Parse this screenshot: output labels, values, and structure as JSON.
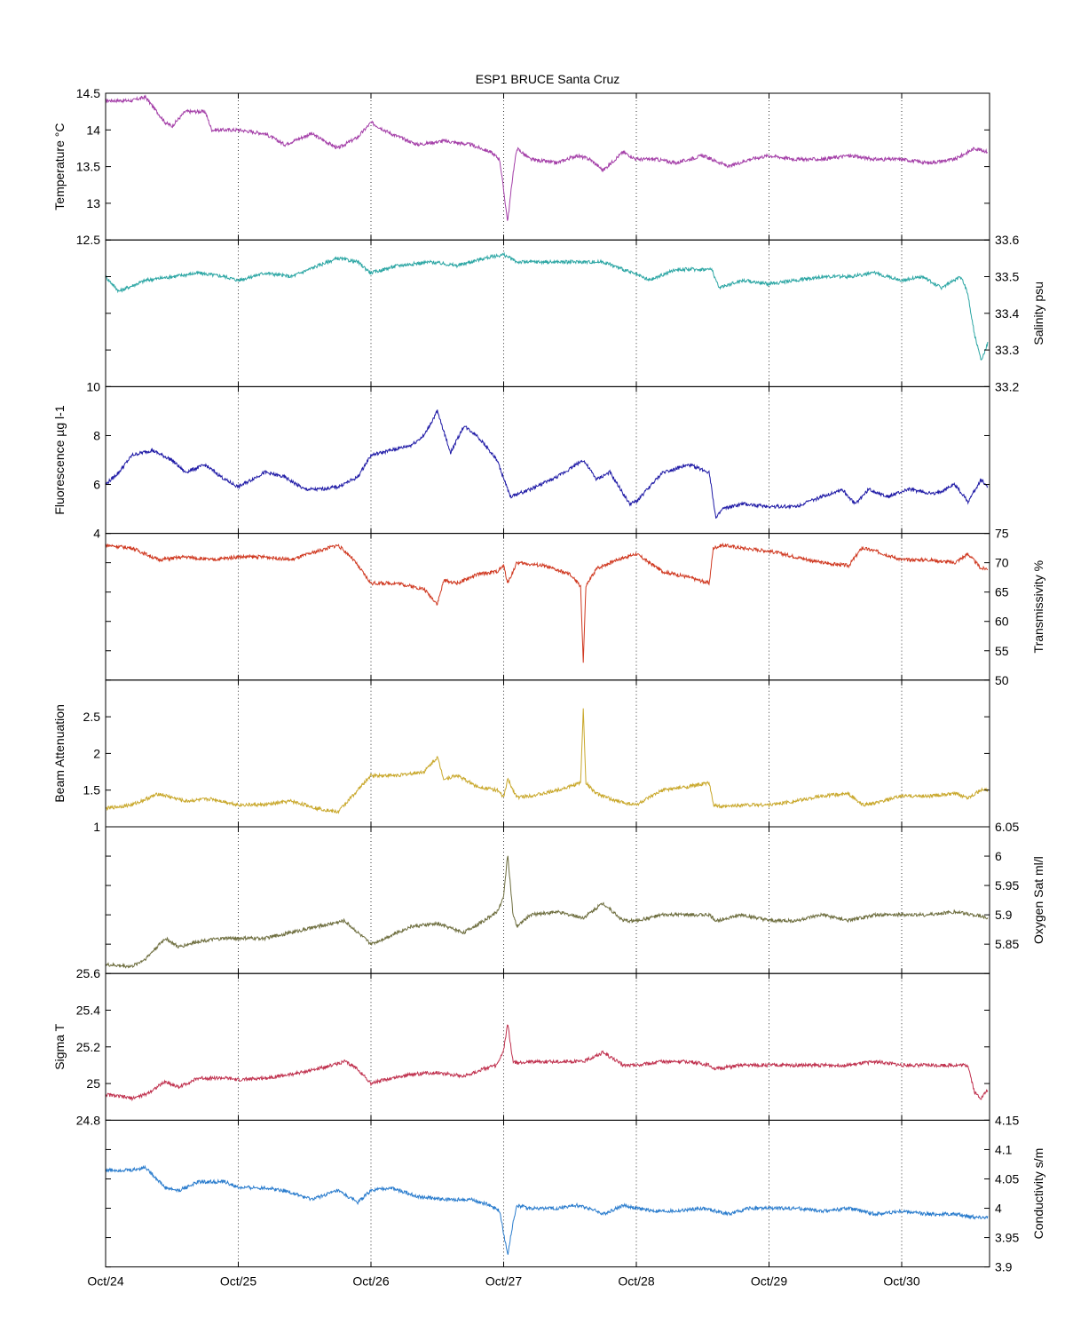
{
  "title": "ESP1 BRUCE Santa Cruz",
  "x_ticks": [
    "Oct/24",
    "Oct/25",
    "Oct/26",
    "Oct/27",
    "Oct/28",
    "Oct/29",
    "Oct/30"
  ],
  "chart_data": [
    {
      "type": "line",
      "ylabel": "Temperature °C",
      "yaxis_side": "left",
      "ylim": [
        12.5,
        14.5
      ],
      "yticks": [
        "12.5",
        "13",
        "13.5",
        "14",
        "14.5"
      ],
      "grid": "vertical dotted at day ticks",
      "color": "#a43fa8",
      "series": [
        {
          "x": [
            0.0,
            0.2,
            0.3,
            0.45,
            0.5,
            0.6,
            0.75,
            0.8,
            1.0,
            1.2,
            1.35,
            1.55,
            1.75,
            1.9,
            2.0,
            2.15,
            2.35,
            2.55,
            2.75,
            2.9,
            2.97,
            3.03,
            3.07,
            3.1,
            3.2,
            3.4,
            3.55,
            3.65,
            3.75,
            3.9,
            4.0,
            4.15,
            4.3,
            4.5,
            4.7,
            4.85,
            5.0,
            5.2,
            5.4,
            5.6,
            5.8,
            6.0,
            6.2,
            6.4,
            6.55,
            6.65
          ],
          "values": [
            14.4,
            14.4,
            14.45,
            14.1,
            14.05,
            14.25,
            14.25,
            14.0,
            14.0,
            13.95,
            13.8,
            13.95,
            13.75,
            13.9,
            14.1,
            13.95,
            13.8,
            13.85,
            13.8,
            13.7,
            13.6,
            12.75,
            13.4,
            13.75,
            13.6,
            13.55,
            13.65,
            13.6,
            13.45,
            13.7,
            13.6,
            13.6,
            13.55,
            13.65,
            13.5,
            13.6,
            13.65,
            13.6,
            13.6,
            13.65,
            13.6,
            13.6,
            13.55,
            13.6,
            13.75,
            13.7
          ]
        }
      ]
    },
    {
      "type": "line",
      "ylabel": "Salinity psu",
      "yaxis_side": "right",
      "ylim": [
        33.2,
        33.6
      ],
      "yticks": [
        "33.2",
        "33.3",
        "33.4",
        "33.5",
        "33.6"
      ],
      "grid": "vertical dotted at day ticks",
      "color": "#2ca6a4",
      "series": [
        {
          "x": [
            0.0,
            0.1,
            0.3,
            0.5,
            0.7,
            0.9,
            1.0,
            1.2,
            1.4,
            1.6,
            1.75,
            1.9,
            2.0,
            2.2,
            2.45,
            2.65,
            2.85,
            3.0,
            3.1,
            3.3,
            3.5,
            3.75,
            3.9,
            4.1,
            4.3,
            4.5,
            4.57,
            4.62,
            4.8,
            5.0,
            5.2,
            5.4,
            5.6,
            5.8,
            6.0,
            6.15,
            6.3,
            6.45,
            6.5,
            6.55,
            6.6,
            6.65
          ],
          "values": [
            33.5,
            33.46,
            33.49,
            33.5,
            33.51,
            33.5,
            33.49,
            33.51,
            33.5,
            33.53,
            33.55,
            33.54,
            33.51,
            33.53,
            33.54,
            33.53,
            33.55,
            33.56,
            33.54,
            33.54,
            33.54,
            33.54,
            33.52,
            33.49,
            33.52,
            33.52,
            33.52,
            33.47,
            33.49,
            33.48,
            33.49,
            33.5,
            33.5,
            33.51,
            33.49,
            33.5,
            33.47,
            33.5,
            33.45,
            33.34,
            33.27,
            33.32
          ]
        }
      ]
    },
    {
      "type": "line",
      "ylabel": "Fluorescence µg l-1",
      "yaxis_side": "left",
      "ylim": [
        4,
        10
      ],
      "yticks": [
        "4",
        "6",
        "8",
        "10"
      ],
      "grid": "vertical dotted at day ticks",
      "color": "#1f1aa6",
      "series": [
        {
          "x": [
            0.0,
            0.1,
            0.2,
            0.35,
            0.5,
            0.6,
            0.75,
            0.9,
            1.0,
            1.2,
            1.35,
            1.5,
            1.6,
            1.75,
            1.9,
            2.0,
            2.15,
            2.3,
            2.4,
            2.5,
            2.6,
            2.7,
            2.8,
            2.95,
            3.05,
            3.2,
            3.4,
            3.6,
            3.7,
            3.8,
            3.95,
            4.0,
            4.2,
            4.4,
            4.55,
            4.6,
            4.65,
            4.8,
            5.0,
            5.2,
            5.4,
            5.55,
            5.65,
            5.75,
            5.9,
            6.05,
            6.25,
            6.4,
            6.5,
            6.6,
            6.65
          ],
          "values": [
            6.0,
            6.5,
            7.2,
            7.4,
            7.0,
            6.5,
            6.8,
            6.2,
            5.9,
            6.5,
            6.3,
            5.8,
            5.8,
            5.9,
            6.3,
            7.2,
            7.4,
            7.6,
            8.0,
            9.0,
            7.3,
            8.4,
            8.0,
            7.0,
            5.5,
            5.8,
            6.3,
            7.0,
            6.2,
            6.5,
            5.2,
            5.3,
            6.5,
            6.8,
            6.5,
            4.6,
            5.0,
            5.2,
            5.1,
            5.1,
            5.5,
            5.8,
            5.2,
            5.8,
            5.5,
            5.8,
            5.6,
            6.0,
            5.3,
            6.2,
            5.9
          ]
        }
      ]
    },
    {
      "type": "line",
      "ylabel": "Transmissivity %",
      "yaxis_side": "right",
      "ylim": [
        50,
        75
      ],
      "yticks": [
        "50",
        "55",
        "60",
        "65",
        "70",
        "75"
      ],
      "grid": "vertical dotted at day ticks",
      "color": "#d03a22",
      "series": [
        {
          "x": [
            0.0,
            0.2,
            0.4,
            0.6,
            0.8,
            1.0,
            1.2,
            1.4,
            1.6,
            1.75,
            1.85,
            2.0,
            2.2,
            2.4,
            2.5,
            2.55,
            2.65,
            2.8,
            2.95,
            3.0,
            3.03,
            3.1,
            3.3,
            3.5,
            3.58,
            3.6,
            3.62,
            3.7,
            3.85,
            4.0,
            4.2,
            4.4,
            4.55,
            4.58,
            4.65,
            4.8,
            5.0,
            5.2,
            5.4,
            5.6,
            5.7,
            5.8,
            6.0,
            6.2,
            6.4,
            6.5,
            6.6,
            6.65
          ],
          "values": [
            73,
            72.5,
            70.5,
            71,
            70.5,
            71,
            71,
            70.5,
            72,
            73,
            71,
            66.5,
            66.5,
            65.5,
            63,
            67,
            66.5,
            68,
            68.5,
            69.5,
            66.5,
            70,
            69.5,
            68,
            66,
            53,
            66,
            69,
            70.5,
            71.5,
            68.5,
            67.5,
            66.5,
            72.5,
            73,
            72.5,
            72,
            71,
            70,
            69.5,
            72.5,
            72,
            70.5,
            70.5,
            70,
            71.5,
            69,
            69
          ]
        }
      ]
    },
    {
      "type": "line",
      "ylabel": "Beam Attenuation",
      "yaxis_side": "left",
      "ylim": [
        1,
        3
      ],
      "yticks": [
        "1",
        "1.5",
        "2",
        "2.5"
      ],
      "grid": "vertical dotted at day ticks",
      "color": "#c9a82c",
      "series": [
        {
          "x": [
            0.0,
            0.2,
            0.4,
            0.6,
            0.8,
            1.0,
            1.2,
            1.4,
            1.6,
            1.75,
            1.85,
            2.0,
            2.2,
            2.4,
            2.5,
            2.55,
            2.65,
            2.8,
            2.95,
            3.0,
            3.03,
            3.1,
            3.3,
            3.5,
            3.58,
            3.6,
            3.62,
            3.7,
            3.85,
            4.0,
            4.2,
            4.4,
            4.55,
            4.58,
            4.65,
            4.8,
            5.0,
            5.2,
            5.4,
            5.6,
            5.7,
            5.8,
            6.0,
            6.2,
            6.4,
            6.5,
            6.6,
            6.65
          ],
          "values": [
            1.25,
            1.3,
            1.45,
            1.35,
            1.38,
            1.3,
            1.3,
            1.35,
            1.25,
            1.2,
            1.4,
            1.7,
            1.7,
            1.75,
            1.95,
            1.65,
            1.7,
            1.55,
            1.5,
            1.4,
            1.65,
            1.4,
            1.45,
            1.55,
            1.6,
            2.6,
            1.6,
            1.45,
            1.35,
            1.3,
            1.5,
            1.55,
            1.6,
            1.3,
            1.27,
            1.3,
            1.3,
            1.35,
            1.42,
            1.45,
            1.3,
            1.32,
            1.42,
            1.42,
            1.45,
            1.4,
            1.5,
            1.5
          ]
        }
      ]
    },
    {
      "type": "line",
      "ylabel": "Oxygen Sat ml/l",
      "yaxis_side": "right",
      "ylim": [
        5.8,
        6.05
      ],
      "yticks": [
        "5.85",
        "5.9",
        "5.95",
        "6",
        "6.05"
      ],
      "grid": "vertical dotted at day ticks",
      "color": "#6f6f40",
      "series": [
        {
          "x": [
            0.0,
            0.2,
            0.3,
            0.45,
            0.55,
            0.7,
            0.9,
            1.0,
            1.2,
            1.4,
            1.6,
            1.8,
            1.9,
            2.0,
            2.1,
            2.3,
            2.5,
            2.7,
            2.85,
            2.95,
            3.0,
            3.03,
            3.07,
            3.1,
            3.2,
            3.4,
            3.6,
            3.75,
            3.9,
            4.0,
            4.2,
            4.4,
            4.55,
            4.6,
            4.8,
            5.0,
            5.2,
            5.4,
            5.6,
            5.8,
            6.0,
            6.2,
            6.4,
            6.55,
            6.65
          ],
          "values": [
            5.815,
            5.812,
            5.825,
            5.86,
            5.845,
            5.855,
            5.86,
            5.86,
            5.86,
            5.87,
            5.88,
            5.89,
            5.87,
            5.85,
            5.86,
            5.88,
            5.885,
            5.87,
            5.89,
            5.905,
            5.93,
            6.005,
            5.9,
            5.88,
            5.9,
            5.905,
            5.895,
            5.92,
            5.89,
            5.89,
            5.9,
            5.9,
            5.9,
            5.89,
            5.9,
            5.89,
            5.89,
            5.9,
            5.89,
            5.9,
            5.9,
            5.9,
            5.905,
            5.9,
            5.895
          ]
        }
      ]
    },
    {
      "type": "line",
      "ylabel": "Sigma T",
      "yaxis_side": "left",
      "ylim": [
        24.8,
        25.6
      ],
      "yticks": [
        "24.8",
        "25",
        "25.2",
        "25.4",
        "25.6"
      ],
      "grid": "vertical dotted at day ticks",
      "color": "#c0324f",
      "series": [
        {
          "x": [
            0.0,
            0.2,
            0.3,
            0.45,
            0.55,
            0.7,
            0.9,
            1.0,
            1.2,
            1.4,
            1.6,
            1.8,
            1.9,
            2.0,
            2.1,
            2.3,
            2.5,
            2.7,
            2.85,
            2.95,
            3.0,
            3.03,
            3.07,
            3.1,
            3.2,
            3.4,
            3.6,
            3.75,
            3.9,
            4.0,
            4.2,
            4.4,
            4.55,
            4.6,
            4.8,
            5.0,
            5.2,
            5.4,
            5.6,
            5.8,
            6.0,
            6.2,
            6.4,
            6.5,
            6.55,
            6.6,
            6.65
          ],
          "values": [
            24.94,
            24.92,
            24.94,
            25.01,
            24.98,
            25.03,
            25.03,
            25.02,
            25.03,
            25.05,
            25.08,
            25.12,
            25.08,
            25.0,
            25.02,
            25.05,
            25.06,
            25.04,
            25.08,
            25.1,
            25.18,
            25.33,
            25.12,
            25.11,
            25.12,
            25.12,
            25.12,
            25.17,
            25.1,
            25.1,
            25.12,
            25.12,
            25.1,
            25.08,
            25.1,
            25.1,
            25.1,
            25.1,
            25.1,
            25.12,
            25.1,
            25.1,
            25.1,
            25.1,
            24.95,
            24.92,
            24.97
          ]
        }
      ]
    },
    {
      "type": "line",
      "ylabel": "Conductivity s/m",
      "yaxis_side": "right",
      "ylim": [
        3.9,
        4.15
      ],
      "yticks": [
        "3.9",
        "3.95",
        "4",
        "4.05",
        "4.1",
        "4.15"
      ],
      "grid": "vertical dotted at day ticks",
      "color": "#2a7ccd",
      "series": [
        {
          "x": [
            0.0,
            0.2,
            0.3,
            0.45,
            0.55,
            0.7,
            0.9,
            1.0,
            1.2,
            1.35,
            1.55,
            1.75,
            1.9,
            2.0,
            2.15,
            2.35,
            2.55,
            2.75,
            2.9,
            2.97,
            3.03,
            3.07,
            3.1,
            3.2,
            3.4,
            3.55,
            3.65,
            3.75,
            3.9,
            4.0,
            4.15,
            4.3,
            4.5,
            4.7,
            4.85,
            5.0,
            5.2,
            5.4,
            5.6,
            5.8,
            6.0,
            6.2,
            6.4,
            6.55,
            6.65
          ],
          "values": [
            4.065,
            4.065,
            4.07,
            4.035,
            4.03,
            4.045,
            4.045,
            4.035,
            4.035,
            4.03,
            4.015,
            4.03,
            4.01,
            4.03,
            4.035,
            4.02,
            4.015,
            4.015,
            4.005,
            3.995,
            3.92,
            3.975,
            4.005,
            4.0,
            4.0,
            4.005,
            4.0,
            3.99,
            4.005,
            4.0,
            3.995,
            3.995,
            4.0,
            3.99,
            4.0,
            4.0,
            4.0,
            3.995,
            4.0,
            3.99,
            3.995,
            3.99,
            3.99,
            3.985,
            3.985
          ]
        }
      ]
    }
  ]
}
